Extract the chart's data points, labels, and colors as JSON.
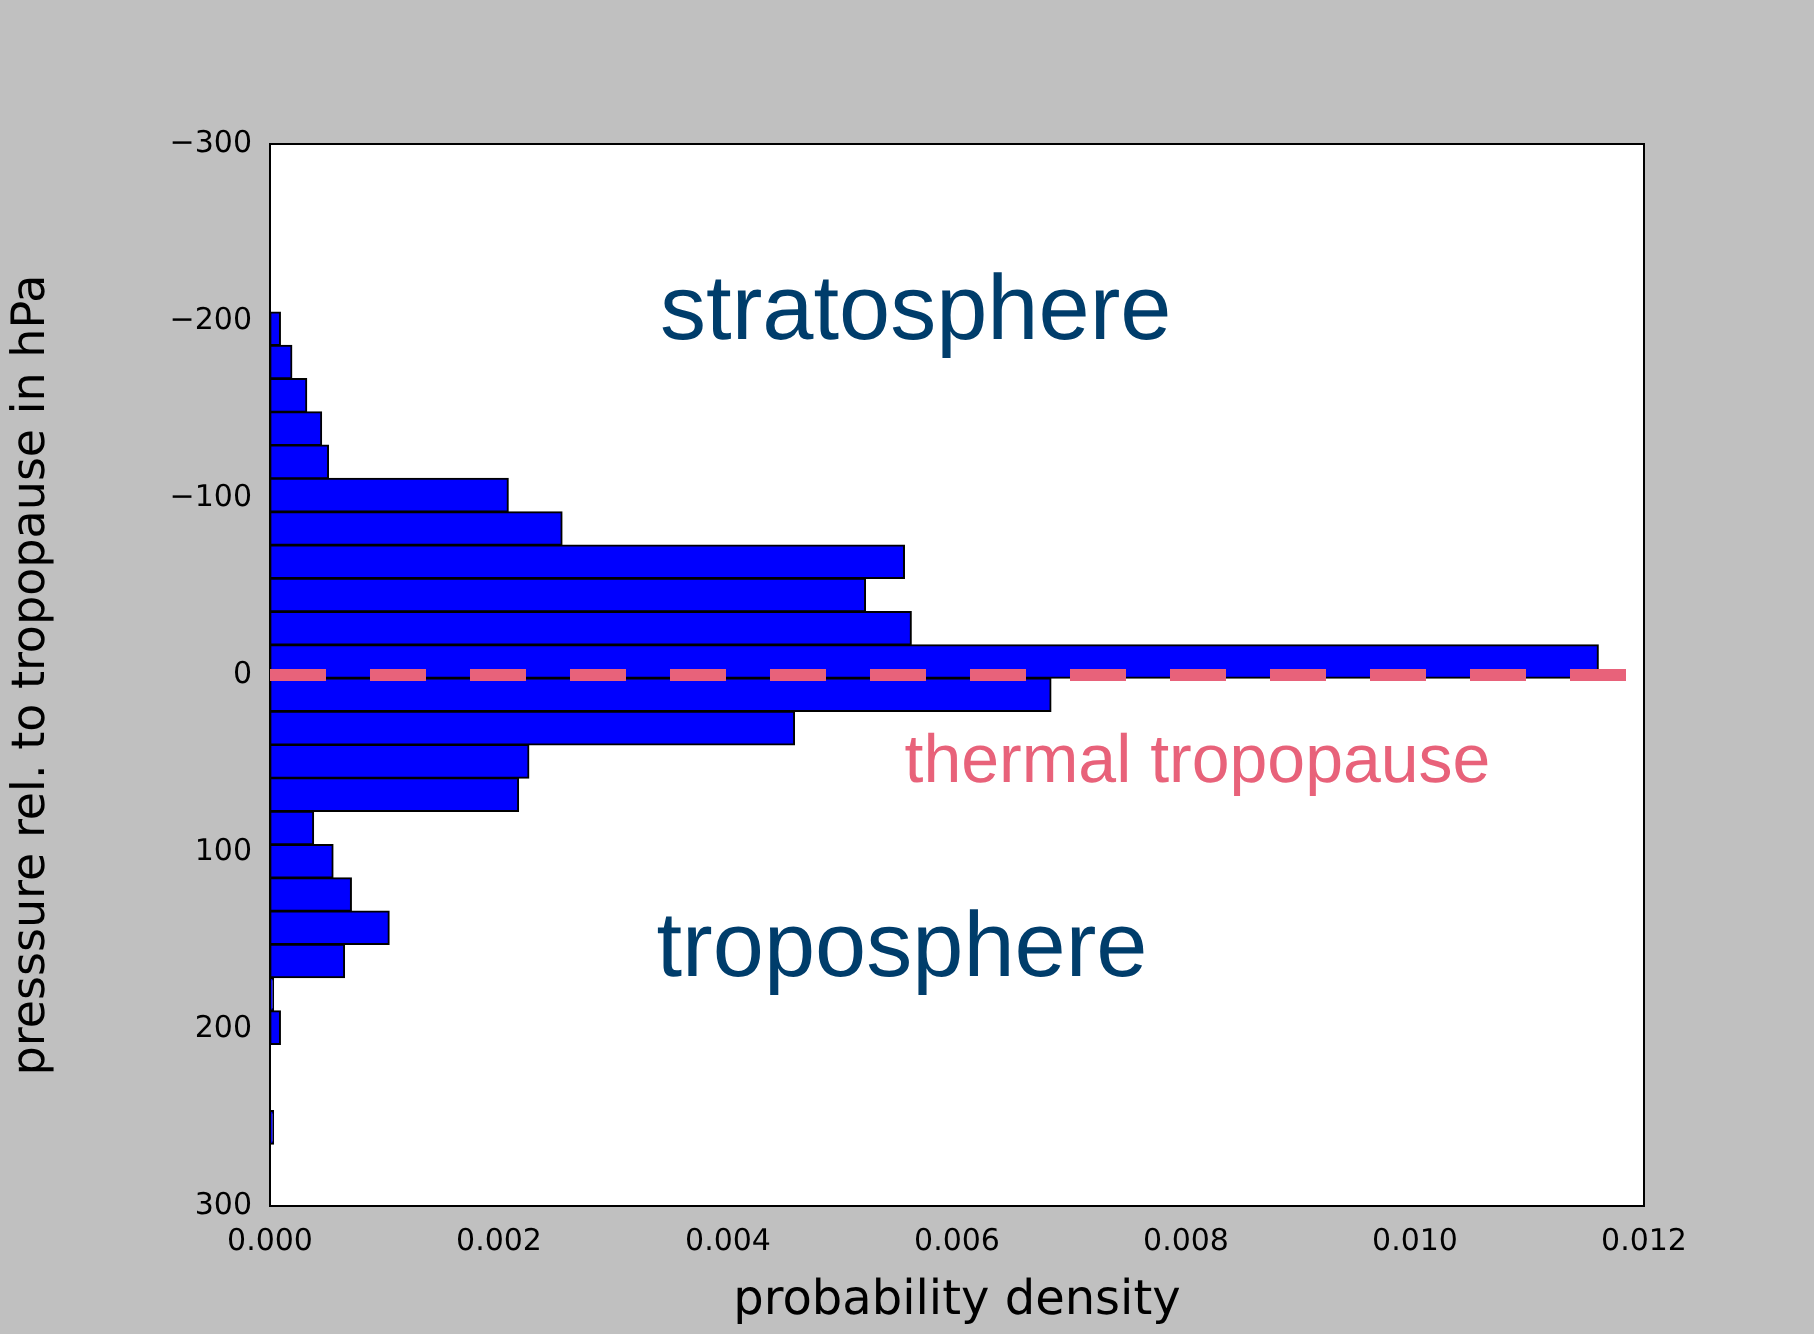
{
  "chart_data": {
    "type": "histogram",
    "orientation": "horizontal",
    "xlabel": "probability density",
    "ylabel": "presssure rel. to tropopause in hPa",
    "bins": [
      -205,
      -186.2,
      -167.4,
      -148.6,
      -129.8,
      -111,
      -92.2,
      -73.4,
      -54.6,
      -35.8,
      -17,
      1.8,
      20.6,
      39.4,
      58.2,
      77,
      95.8,
      114.6,
      133.4,
      152.2,
      171,
      189.8,
      208.6,
      227.4,
      246.2,
      265
    ],
    "values": [
      9e-05,
      0.00019,
      0.00032,
      0.00045,
      0.00051,
      0.00208,
      0.00255,
      0.00554,
      0.0052,
      0.0056,
      0.0116,
      0.00682,
      0.00458,
      0.00226,
      0.00217,
      0.00038,
      0.00055,
      0.00071,
      0.00104,
      0.00065,
      3e-05,
      9e-05,
      0,
      0,
      3e-05
    ],
    "color": "#0000ff",
    "xlim": [
      0,
      0.012
    ],
    "xticks": [
      {
        "value": 0,
        "label": "0.000"
      },
      {
        "value": 0.002,
        "label": "0.002"
      },
      {
        "value": 0.004,
        "label": "0.004"
      },
      {
        "value": 0.006,
        "label": "0.006"
      },
      {
        "value": 0.008,
        "label": "0.008"
      },
      {
        "value": 0.01,
        "label": "0.010"
      },
      {
        "value": 0.012,
        "label": "0.012"
      }
    ],
    "ylim": [
      300,
      -300
    ],
    "yticks": [
      {
        "value": -300,
        "label": "−300"
      },
      {
        "value": -200,
        "label": "−200"
      },
      {
        "value": -100,
        "label": "−100"
      },
      0,
      100,
      200,
      300
    ],
    "ref_lines": [
      {
        "axis": "y",
        "value": 0,
        "label": "thermal tropopause",
        "color": "#e8627a",
        "line_style": "dashed"
      }
    ],
    "annotations": [
      "stratosphere",
      "troposphere"
    ],
    "grid": false,
    "legend": false
  }
}
